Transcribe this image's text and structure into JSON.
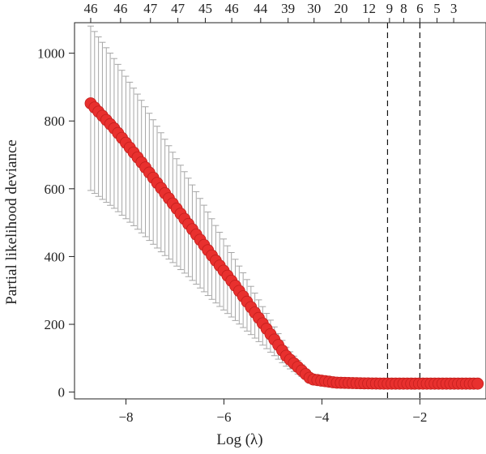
{
  "chart_data": {
    "type": "scatter",
    "xlabel": "Log (λ)",
    "ylabel": "Partial likelihood deviance",
    "xlim": [
      -9.05,
      -0.65
    ],
    "ylim": [
      -20,
      1090
    ],
    "x_ticks": [
      -8,
      -6,
      -4,
      -2
    ],
    "x_tick_labels": [
      "−8",
      "−6",
      "−4",
      "−2"
    ],
    "y_ticks": [
      0,
      200,
      400,
      600,
      800,
      1000
    ],
    "y_tick_labels": [
      "0",
      "200",
      "400",
      "600",
      "800",
      "1000"
    ],
    "top_axis": {
      "x": [
        -8.72,
        -8.11,
        -7.5,
        -6.94,
        -6.38,
        -5.84,
        -5.25,
        -4.69,
        -4.16,
        -3.61,
        -3.04,
        -2.62,
        -2.33,
        -2.0,
        -1.65,
        -1.31
      ],
      "labels": [
        "46",
        "46",
        "47",
        "47",
        "45",
        "46",
        "44",
        "39",
        "30",
        "20",
        "12",
        "9",
        "8",
        "6",
        "5",
        "3"
      ]
    },
    "vlines": [
      -2.66,
      -2.0
    ],
    "grid": false,
    "point_color": "#e8302e",
    "errorbar_color": "#a6a6a6",
    "curve_description": "cross-validated deviance with error bars, decreasing from about 850 at log(λ)≈-8.7 to about 25 beyond log(λ)≈-4.5",
    "series": [
      {
        "x": [
          -8.72,
          -8.22,
          -7.72,
          -7.22,
          -6.72,
          -6.22,
          -5.72,
          -5.22,
          -4.72,
          -4.22,
          -3.72,
          -3.22,
          -2.72,
          -2.22,
          -1.72,
          -1.22,
          -0.82
        ],
        "y": [
          852,
          775,
          685,
          590,
          495,
          398,
          305,
          205,
          105,
          38,
          28,
          26,
          25,
          25,
          25,
          25,
          25
        ],
        "upper": [
          1080,
          980,
          870,
          750,
          630,
          505,
          380,
          255,
          130,
          50,
          35,
          33,
          32,
          32,
          32,
          32,
          32
        ],
        "lower": [
          595,
          540,
          475,
          405,
          340,
          270,
          205,
          140,
          75,
          28,
          20,
          18,
          18,
          18,
          18,
          18,
          18
        ]
      }
    ]
  }
}
